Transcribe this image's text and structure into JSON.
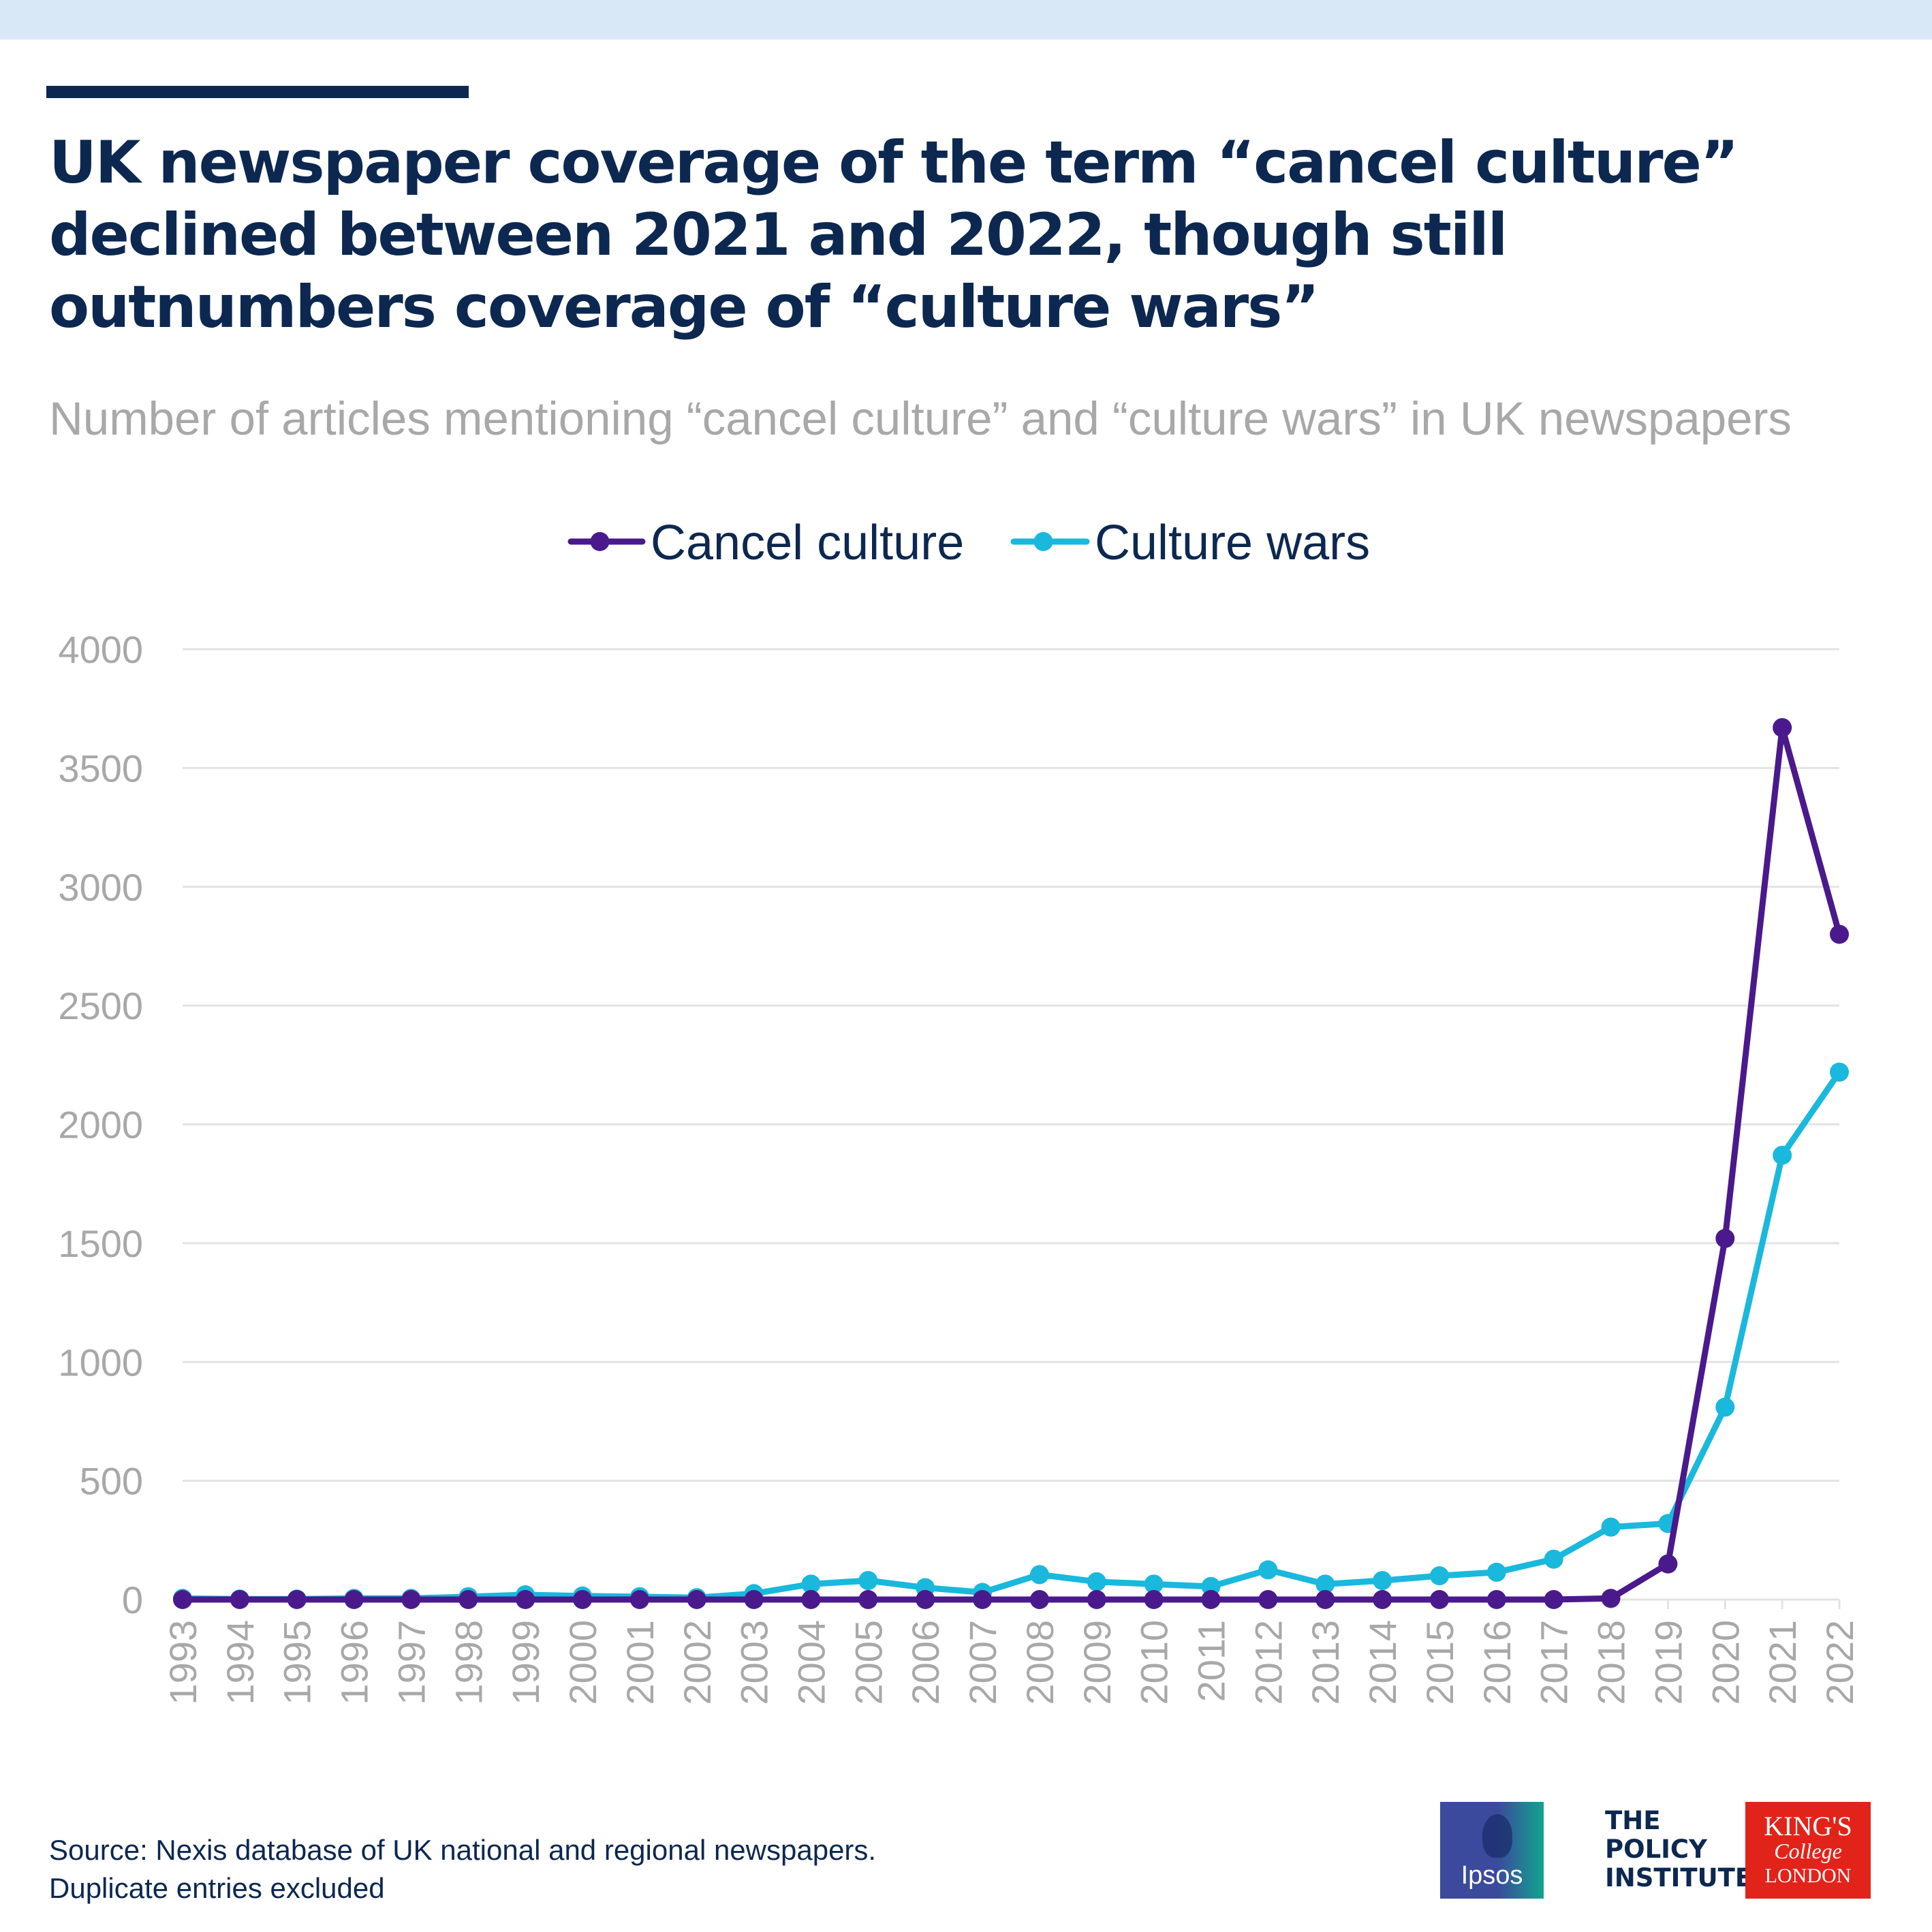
{
  "header": {
    "title": "UK newspaper coverage of the term “cancel culture” declined between 2021 and 2022, though still outnumbers coverage of “culture wars”",
    "subtitle": "Number of articles mentioning “cancel culture” and “culture wars” in UK newspapers"
  },
  "colors": {
    "title": "#0d2850",
    "cancel_culture": "#4a1a8c",
    "culture_wars": "#1ab8dc",
    "gridline": "#e3e3e3",
    "axis_text": "#a8a8a8",
    "top_band": "#d9e8f7"
  },
  "chart_data": {
    "type": "line",
    "x": [
      "1993",
      "1994",
      "1995",
      "1996",
      "1997",
      "1998",
      "1999",
      "2000",
      "2001",
      "2002",
      "2003",
      "2004",
      "2005",
      "2006",
      "2007",
      "2008",
      "2009",
      "2010",
      "2011",
      "2012",
      "2013",
      "2014",
      "2015",
      "2016",
      "2017",
      "2018",
      "2019",
      "2020",
      "2021",
      "2022"
    ],
    "series": [
      {
        "name": "Cancel culture",
        "color": "#4a1a8c",
        "values": [
          0,
          0,
          0,
          0,
          0,
          0,
          0,
          0,
          0,
          0,
          0,
          0,
          0,
          0,
          0,
          0,
          0,
          0,
          0,
          0,
          0,
          0,
          0,
          0,
          0,
          5,
          150,
          1520,
          3670,
          2800
        ]
      },
      {
        "name": "Culture wars",
        "color": "#1ab8dc",
        "values": [
          5,
          2,
          2,
          5,
          5,
          12,
          20,
          15,
          12,
          8,
          25,
          65,
          80,
          50,
          30,
          105,
          75,
          65,
          55,
          125,
          65,
          80,
          100,
          115,
          170,
          305,
          320,
          810,
          1870,
          2220
        ]
      }
    ],
    "ylim": [
      0,
      4000
    ],
    "yticks": [
      "0",
      "500",
      "1000",
      "1500",
      "2000",
      "2500",
      "3000",
      "3500",
      "4000"
    ],
    "grid": "horizontal",
    "legend_position": "top-center",
    "xlabel": "",
    "ylabel": ""
  },
  "footer": {
    "source_line1": "Source: Nexis database of UK national and regional newspapers.",
    "source_line2": "Duplicate entries excluded"
  },
  "logos": {
    "ipsos": "Ipsos",
    "policy_institute": [
      "THE",
      "POLICY",
      "INSTITUTE"
    ],
    "kings": [
      "KING'S",
      "College",
      "LONDON"
    ]
  }
}
